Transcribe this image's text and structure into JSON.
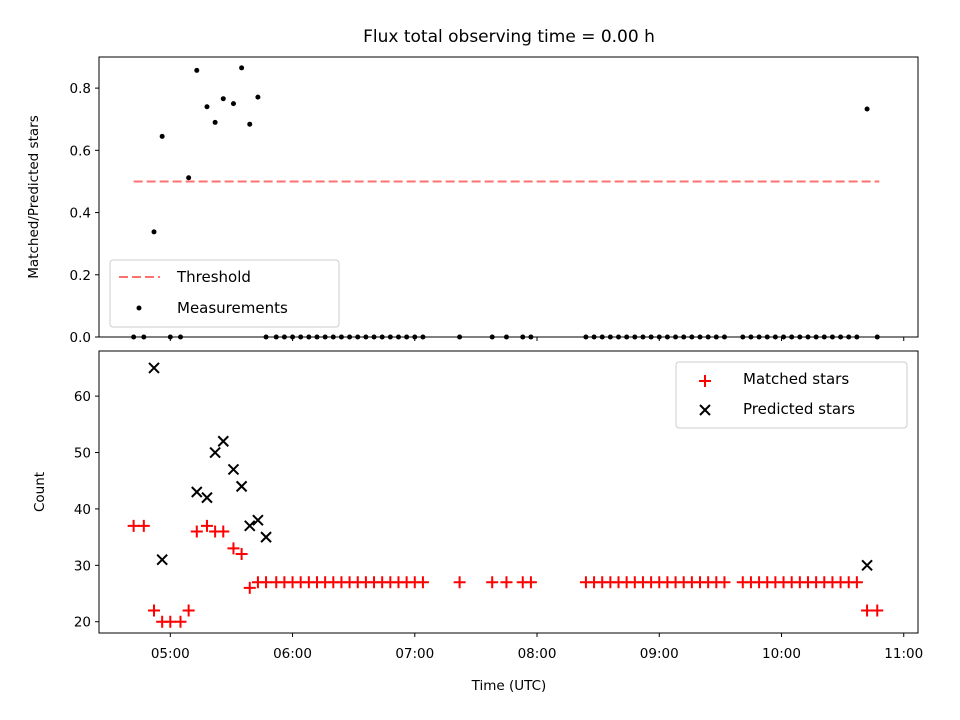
{
  "title": "Flux total observing time = 0.00 h",
  "colors": {
    "threshold": "#ff7070",
    "measurement": "#000000",
    "matched": "#ff0000",
    "predicted": "#000000"
  },
  "chart_data": [
    {
      "type": "scatter",
      "ylabel": "Matched/Predicted stars",
      "xlabel": "",
      "xlim": [
        "04:25",
        "11:07"
      ],
      "ylim": [
        0,
        0.9
      ],
      "yticks": [
        "0.0",
        "0.2",
        "0.4",
        "0.6",
        "0.8"
      ],
      "yticks_values": [
        0.0,
        0.2,
        0.4,
        0.6,
        0.8
      ],
      "legend_position": "lower-left",
      "threshold": {
        "name": "Threshold",
        "y": 0.5,
        "x": [
          "04:42",
          "10:48"
        ]
      },
      "series": [
        {
          "name": "Measurements",
          "x": [
            "04:42",
            "04:47",
            "04:52",
            "04:56",
            "05:00",
            "05:05",
            "05:09",
            "05:13",
            "05:18",
            "05:22",
            "05:26",
            "05:31",
            "05:35",
            "05:39",
            "05:43",
            "05:47",
            "05:52",
            "05:56",
            "06:00",
            "06:04",
            "06:08",
            "06:12",
            "06:16",
            "06:20",
            "06:24",
            "06:28",
            "06:32",
            "06:36",
            "06:40",
            "06:44",
            "06:48",
            "06:52",
            "06:56",
            "07:00",
            "07:04",
            "07:22",
            "07:38",
            "07:45",
            "07:53",
            "07:57",
            "08:24",
            "08:28",
            "08:32",
            "08:36",
            "08:40",
            "08:44",
            "08:48",
            "08:52",
            "08:56",
            "09:00",
            "09:04",
            "09:08",
            "09:12",
            "09:16",
            "09:20",
            "09:24",
            "09:28",
            "09:32",
            "09:41",
            "09:45",
            "09:49",
            "09:53",
            "09:57",
            "10:01",
            "10:05",
            "10:09",
            "10:13",
            "10:17",
            "10:21",
            "10:25",
            "10:29",
            "10:33",
            "10:37",
            "10:42",
            "10:47"
          ],
          "y": [
            0,
            0,
            0.338,
            0.645,
            0,
            0,
            0.512,
            0.857,
            0.74,
            0.69,
            0.766,
            0.75,
            0.865,
            0.684,
            0.771,
            0,
            0,
            0,
            0,
            0,
            0,
            0,
            0,
            0,
            0,
            0,
            0,
            0,
            0,
            0,
            0,
            0,
            0,
            0,
            0,
            0,
            0,
            0,
            0,
            0,
            0,
            0,
            0,
            0,
            0,
            0,
            0,
            0,
            0,
            0,
            0,
            0,
            0,
            0,
            0,
            0,
            0,
            0,
            0,
            0,
            0,
            0,
            0,
            0,
            0,
            0,
            0,
            0,
            0,
            0,
            0,
            0,
            0,
            0.733,
            0
          ]
        }
      ]
    },
    {
      "type": "scatter",
      "ylabel": "Count",
      "xlabel": "Time (UTC)",
      "xlim": [
        "04:25",
        "11:07"
      ],
      "ylim": [
        18,
        68
      ],
      "yticks": [
        "20",
        "30",
        "40",
        "50",
        "60"
      ],
      "yticks_values": [
        20,
        30,
        40,
        50,
        60
      ],
      "xticks": [
        "05:00",
        "06:00",
        "07:00",
        "08:00",
        "09:00",
        "10:00",
        "11:00"
      ],
      "legend_position": "upper-right",
      "series": [
        {
          "name": "Matched stars",
          "x": [
            "04:42",
            "04:47",
            "04:52",
            "04:56",
            "05:00",
            "05:05",
            "05:09",
            "05:13",
            "05:18",
            "05:22",
            "05:26",
            "05:31",
            "05:35",
            "05:39",
            "05:43",
            "05:47",
            "05:52",
            "05:56",
            "06:00",
            "06:04",
            "06:08",
            "06:12",
            "06:16",
            "06:20",
            "06:24",
            "06:28",
            "06:32",
            "06:36",
            "06:40",
            "06:44",
            "06:48",
            "06:52",
            "06:56",
            "07:00",
            "07:04",
            "07:22",
            "07:38",
            "07:45",
            "07:53",
            "07:57",
            "08:24",
            "08:28",
            "08:32",
            "08:36",
            "08:40",
            "08:44",
            "08:48",
            "08:52",
            "08:56",
            "09:00",
            "09:04",
            "09:08",
            "09:12",
            "09:16",
            "09:20",
            "09:24",
            "09:28",
            "09:32",
            "09:41",
            "09:45",
            "09:49",
            "09:53",
            "09:57",
            "10:01",
            "10:05",
            "10:09",
            "10:13",
            "10:17",
            "10:21",
            "10:25",
            "10:29",
            "10:33",
            "10:37",
            "10:42",
            "10:47"
          ],
          "y": [
            37,
            37,
            22,
            20,
            20,
            20,
            22,
            36,
            37,
            36,
            36,
            33,
            32,
            26,
            27,
            27,
            27,
            27,
            27,
            27,
            27,
            27,
            27,
            27,
            27,
            27,
            27,
            27,
            27,
            27,
            27,
            27,
            27,
            27,
            27,
            27,
            27,
            27,
            27,
            27,
            27,
            27,
            27,
            27,
            27,
            27,
            27,
            27,
            27,
            27,
            27,
            27,
            27,
            27,
            27,
            27,
            27,
            27,
            27,
            27,
            27,
            27,
            27,
            27,
            27,
            27,
            27,
            27,
            27,
            27,
            27,
            27,
            27,
            22,
            22
          ]
        },
        {
          "name": "Predicted stars",
          "x": [
            "04:52",
            "04:56",
            "05:13",
            "05:18",
            "05:22",
            "05:26",
            "05:31",
            "05:35",
            "05:39",
            "05:43",
            "05:47",
            "10:42"
          ],
          "y": [
            65,
            31,
            43,
            42,
            50,
            52,
            47,
            44,
            37,
            38,
            35,
            30
          ]
        }
      ]
    }
  ]
}
